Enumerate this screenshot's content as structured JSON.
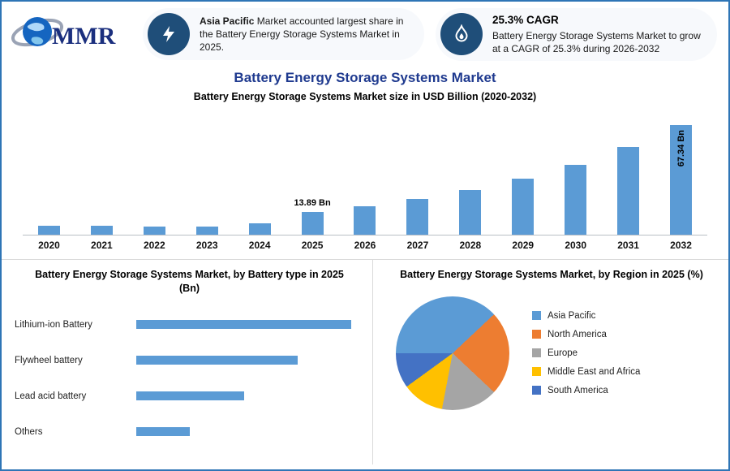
{
  "colors": {
    "border_blue": "#2e75b6",
    "title_blue": "#1f3a8f",
    "bar_blue": "#5b9bd5",
    "icon_circle_navy": "#1f4e79"
  },
  "header": {
    "logo_text": "MMR",
    "callout_share": {
      "highlight": "Asia Pacific",
      "rest": " Market accounted largest share in the Battery Energy Storage Systems Market in 2025."
    },
    "callout_cagr": {
      "title": "25.3% CAGR",
      "body": "Battery Energy Storage Systems Market to grow at a CAGR of 25.3% during 2026-2032"
    }
  },
  "titles": {
    "main": "Battery Energy Storage Systems Market",
    "subtitle": "Battery Energy Storage Systems Market size in USD Billion (2020-2032)",
    "by_type_line1": "Battery Energy Storage Systems Market, by Battery type in 2025",
    "by_type_line2": "(Bn)",
    "by_region": "Battery Energy Storage Systems Market, by Region in 2025 (%)"
  },
  "chart_data": [
    {
      "type": "bar",
      "title": "Battery Energy Storage Systems Market size in USD Billion (2020-2032)",
      "categories": [
        "2020",
        "2021",
        "2022",
        "2023",
        "2024",
        "2025",
        "2026",
        "2027",
        "2028",
        "2029",
        "2030",
        "2031",
        "2032"
      ],
      "values": [
        5.5,
        5.5,
        5.2,
        5.2,
        7.0,
        13.89,
        17.4,
        21.8,
        27.4,
        34.3,
        43.0,
        53.9,
        67.34
      ],
      "labeled_values": {
        "2025": "13.89 Bn",
        "2032": "67.34 Bn"
      },
      "annotations": [
        {
          "category": "2025",
          "text": "13.89 Bn",
          "position": "above"
        },
        {
          "category": "2032",
          "text": "67.34 Bn",
          "position": "inside-vertical"
        }
      ],
      "xlabel": "",
      "ylabel": "",
      "ylim": [
        0,
        70
      ],
      "bar_color": "#5b9bd5",
      "grid": false,
      "estimated_unlabeled_values": true
    },
    {
      "type": "bar",
      "orientation": "horizontal",
      "title": "Battery Energy Storage Systems Market, by Battery type in 2025 (Bn)",
      "categories": [
        "Lithium-ion Battery",
        "Flywheel battery",
        "Lead acid battery",
        "Others"
      ],
      "values": [
        5.6,
        4.2,
        2.8,
        1.4
      ],
      "bar_color": "#5b9bd5",
      "grid": false,
      "estimated_unlabeled_values": true
    },
    {
      "type": "pie",
      "title": "Battery Energy Storage Systems Market, by Region in 2025 (%)",
      "slices": [
        {
          "label": "Asia Pacific",
          "value": 38,
          "color": "#5b9bd5"
        },
        {
          "label": "North America",
          "value": 24,
          "color": "#ed7d31"
        },
        {
          "label": "Europe",
          "value": 16,
          "color": "#a5a5a5"
        },
        {
          "label": "Middle East and Africa",
          "value": 12,
          "color": "#ffc000"
        },
        {
          "label": "South America",
          "value": 10,
          "color": "#4472c4"
        }
      ],
      "legend_position": "right",
      "start_angle_deg": 270,
      "estimated_unlabeled_values": true
    }
  ]
}
